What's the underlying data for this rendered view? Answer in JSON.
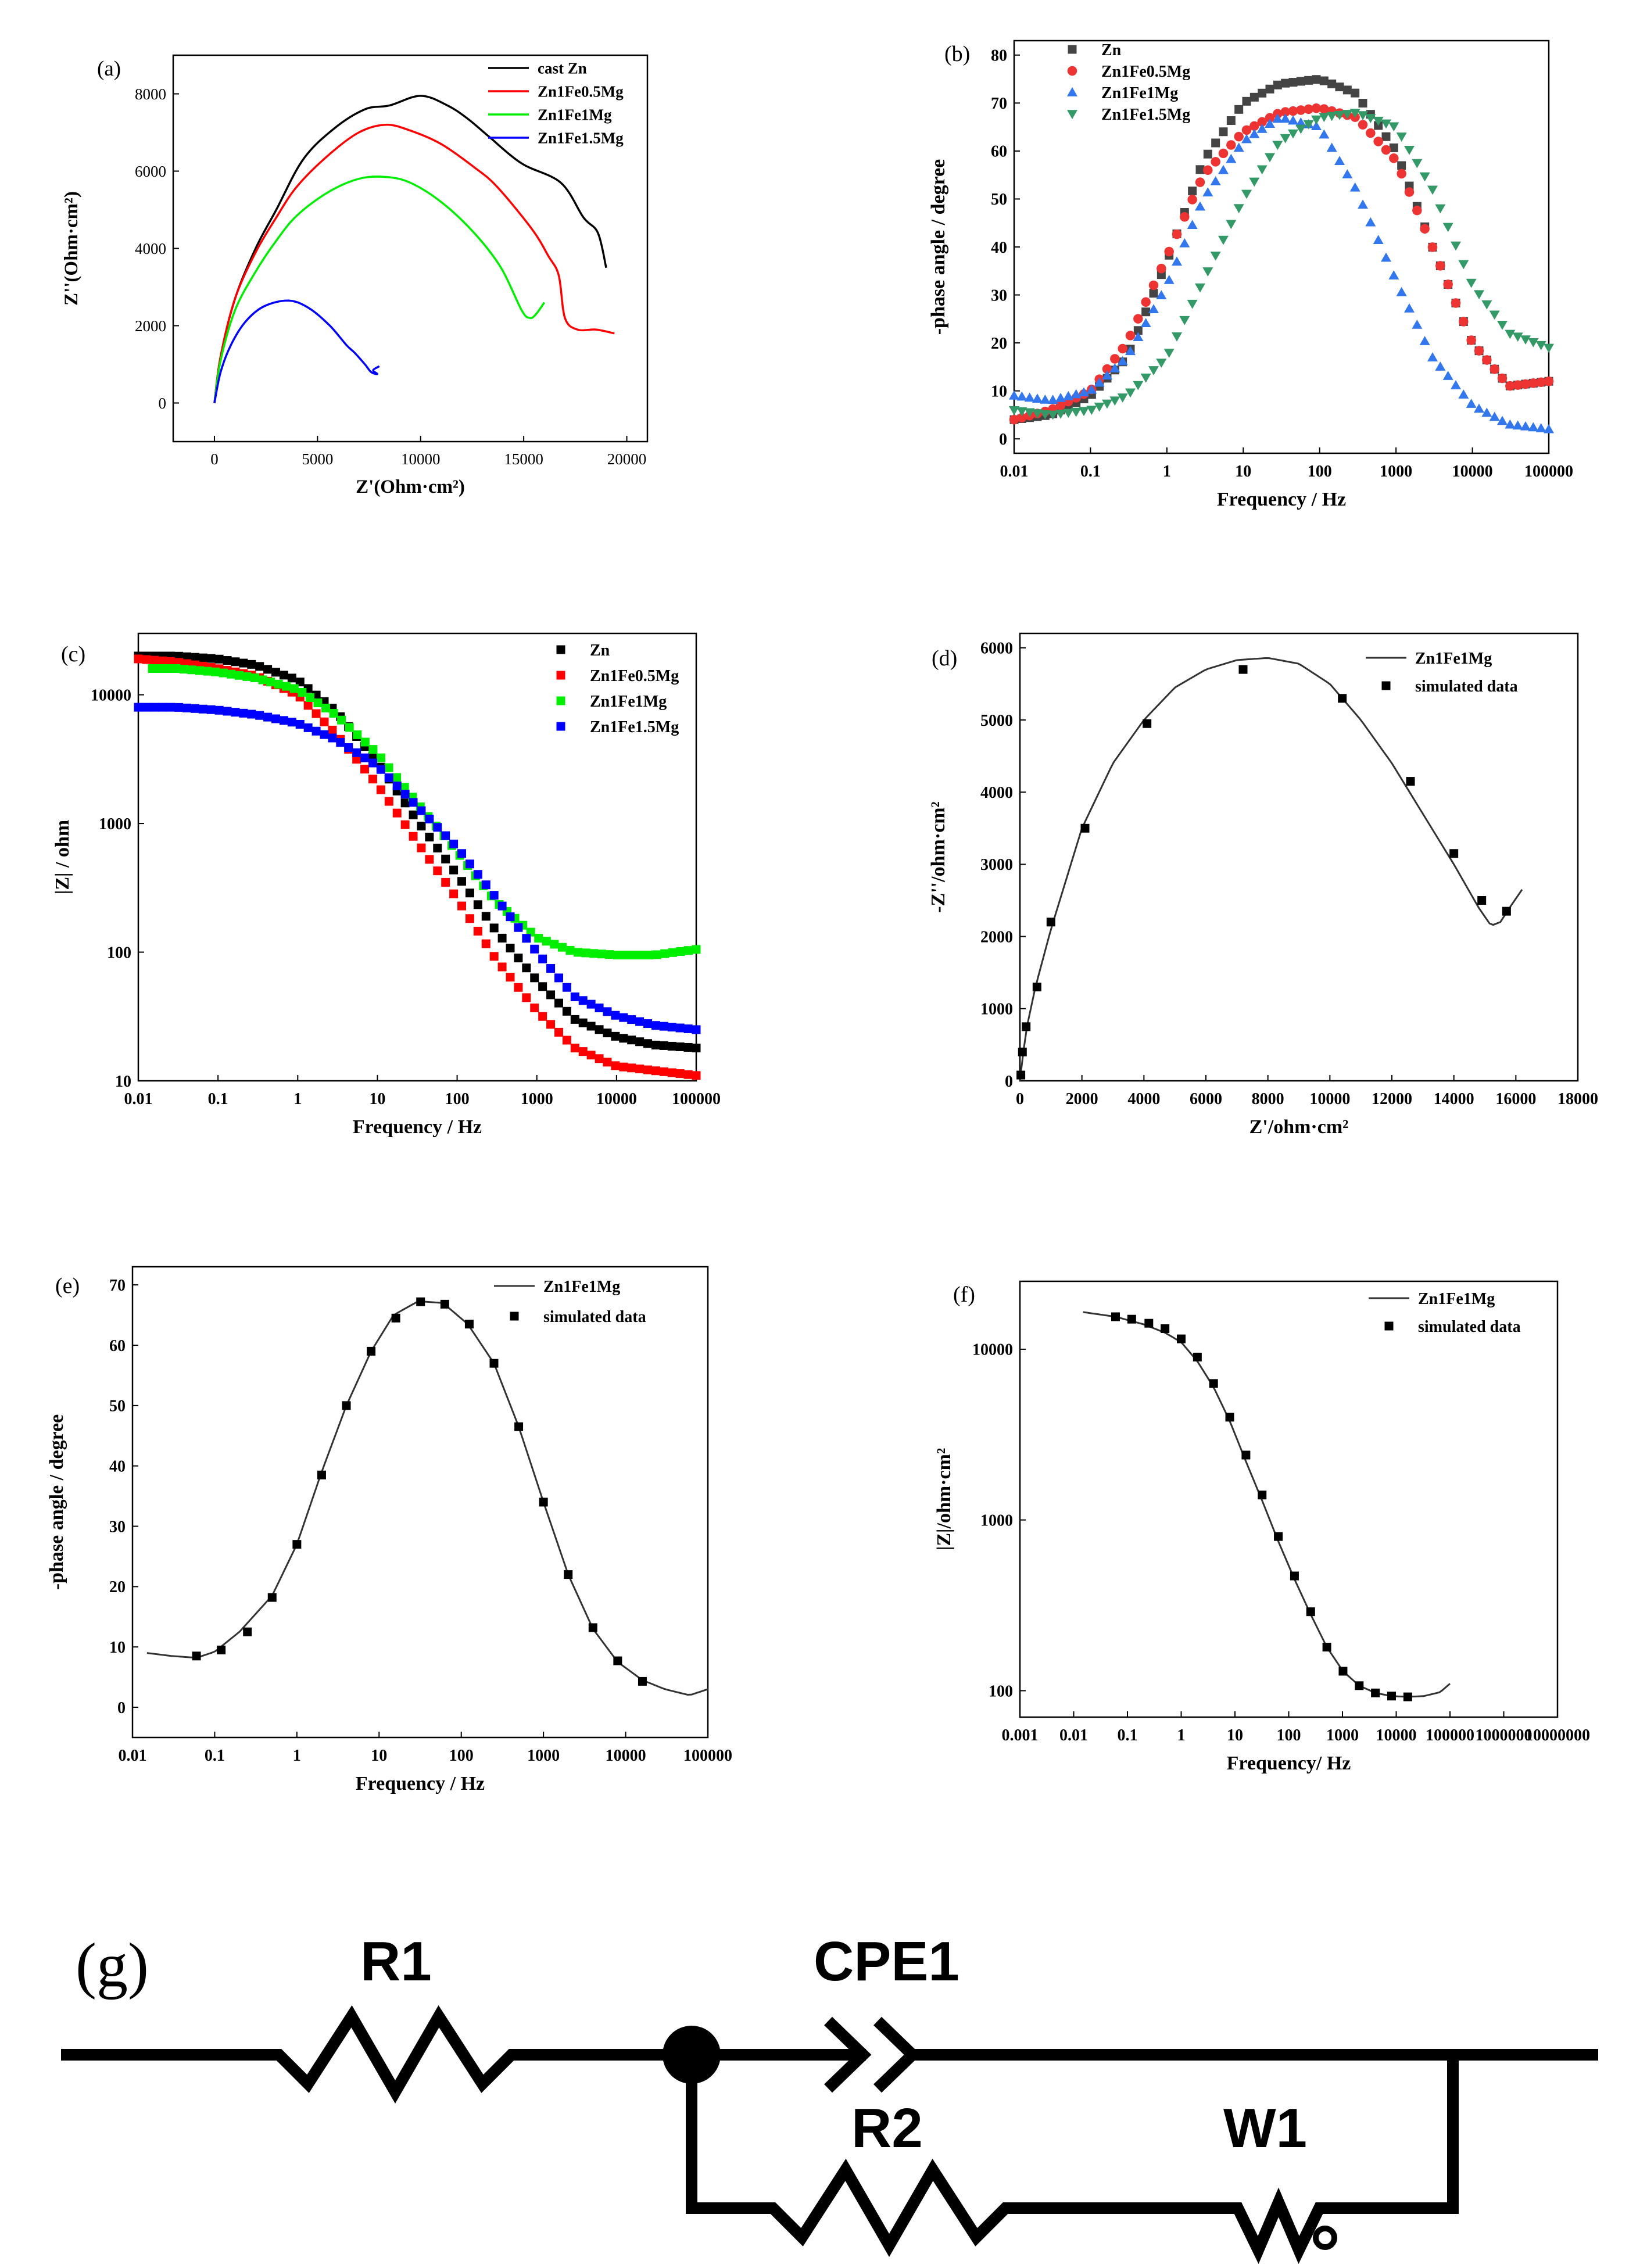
{
  "chart_data": [
    {
      "id": "a",
      "type": "line",
      "panel_label": "(a)",
      "xlabel": "Z'(Ohm·cm²)",
      "ylabel": "Z''(Ohm·cm²)",
      "xlim": [
        -2000,
        21000
      ],
      "ylim": [
        -1000,
        9000
      ],
      "xticks": [
        "0",
        "5000",
        "10000",
        "15000",
        "20000"
      ],
      "xtick_values": [
        0,
        5000,
        10000,
        15000,
        20000
      ],
      "yticks": [
        "0",
        "2000",
        "4000",
        "6000",
        "8000"
      ],
      "ytick_values": [
        0,
        2000,
        4000,
        6000,
        8000
      ],
      "legend_position": "top-right",
      "series": [
        {
          "name": "cast Zn",
          "color": "#000000",
          "x": [
            0,
            300,
            1000,
            2000,
            3000,
            4300,
            5800,
            7300,
            8500,
            10000,
            11300,
            12300,
            13300,
            14900,
            16800,
            17900,
            18600,
            19000
          ],
          "y": [
            0,
            1200,
            2700,
            4000,
            5000,
            6300,
            7100,
            7600,
            7700,
            7950,
            7700,
            7350,
            6900,
            6200,
            5700,
            4800,
            4400,
            3500
          ]
        },
        {
          "name": "Zn1Fe0.5Mg",
          "color": "#ff0000",
          "x": [
            0,
            300,
            1000,
            2000,
            3000,
            4000,
            5500,
            7000,
            8300,
            9500,
            11000,
            12600,
            13700,
            15400,
            16200,
            16700,
            17000,
            17600,
            18500,
            19400
          ],
          "y": [
            0,
            1200,
            2700,
            3900,
            4800,
            5600,
            6400,
            7000,
            7200,
            7050,
            6700,
            6100,
            5600,
            4500,
            3800,
            3300,
            2200,
            1900,
            1900,
            1800
          ]
        },
        {
          "name": "Zn1Fe1Mg",
          "color": "#00ee00",
          "x": [
            0,
            300,
            1000,
            2000,
            3000,
            4000,
            5500,
            7000,
            8300,
            9500,
            11000,
            12600,
            13900,
            14900,
            15300,
            15600,
            16000
          ],
          "y": [
            0,
            1100,
            2400,
            3400,
            4200,
            4850,
            5450,
            5800,
            5850,
            5700,
            5200,
            4400,
            3500,
            2400,
            2200,
            2300,
            2600
          ]
        },
        {
          "name": "Zn1Fe1.5Mg",
          "color": "#0000ff",
          "x": [
            0,
            300,
            800,
            1500,
            2400,
            3600,
            4600,
            5600,
            6400,
            6800,
            7300,
            7600,
            7900,
            7700,
            8000
          ],
          "y": [
            0,
            800,
            1500,
            2100,
            2500,
            2650,
            2450,
            2000,
            1500,
            1300,
            1000,
            800,
            750,
            850,
            950
          ]
        }
      ]
    },
    {
      "id": "b",
      "type": "scatter",
      "panel_label": "(b)",
      "xlabel": "Frequency / Hz",
      "ylabel": "-phase angle / degree",
      "xscale": "log",
      "xlim": [
        0.01,
        100000
      ],
      "ylim": [
        -3,
        83
      ],
      "xticks": [
        "0.01",
        "0.1",
        "1",
        "10",
        "100",
        "1000",
        "10000",
        "100000"
      ],
      "xtick_values": [
        0.01,
        0.1,
        1,
        10,
        100,
        1000,
        10000,
        100000
      ],
      "yticks": [
        "0",
        "10",
        "20",
        "30",
        "40",
        "50",
        "60",
        "70",
        "80"
      ],
      "ytick_values": [
        0,
        10,
        20,
        30,
        40,
        50,
        60,
        70,
        80
      ],
      "legend_position": "top-left",
      "series": [
        {
          "name": "Zn",
          "color": "#444444",
          "marker": "square",
          "x": [
            0.01,
            0.03,
            0.1,
            0.3,
            1,
            3,
            10,
            30,
            100,
            300,
            1000,
            3000,
            10000,
            30000,
            100000
          ],
          "y": [
            4,
            5,
            9,
            17,
            37,
            58,
            70,
            74,
            75,
            72,
            60,
            40,
            20,
            11,
            12
          ]
        },
        {
          "name": "Zn1Fe0.5Mg",
          "color": "#ee3333",
          "marker": "circle",
          "x": [
            0.01,
            0.03,
            0.1,
            0.3,
            1,
            3,
            10,
            30,
            100,
            300,
            1000,
            3000,
            10000,
            30000,
            100000
          ],
          "y": [
            4,
            6,
            10,
            20,
            38,
            55,
            64,
            68,
            69,
            67,
            58,
            40,
            20,
            11,
            12
          ]
        },
        {
          "name": "Zn1Fe1Mg",
          "color": "#3377ee",
          "marker": "triangle-up",
          "x": [
            0.01,
            0.03,
            0.1,
            0.3,
            1,
            3,
            10,
            30,
            100,
            300,
            1000,
            3000,
            10000,
            30000,
            100000
          ],
          "y": [
            9,
            8,
            10,
            17,
            32,
            50,
            62,
            67,
            65,
            52,
            33,
            17,
            7,
            3,
            2
          ]
        },
        {
          "name": "Zn1Fe1.5Mg",
          "color": "#339966",
          "marker": "triangle-down",
          "x": [
            0.01,
            0.03,
            0.1,
            0.3,
            1,
            3,
            10,
            30,
            100,
            300,
            1000,
            3000,
            10000,
            30000,
            100000
          ],
          "y": [
            6,
            5,
            6,
            9,
            17,
            33,
            50,
            62,
            67,
            68,
            65,
            52,
            32,
            22,
            19
          ]
        }
      ]
    },
    {
      "id": "c",
      "type": "scatter",
      "panel_label": "(c)",
      "xlabel": "Frequency / Hz",
      "ylabel": "|Z| / ohm",
      "xscale": "log",
      "yscale": "log",
      "xlim": [
        0.01,
        100000
      ],
      "ylim": [
        10,
        30000
      ],
      "xticks": [
        "0.01",
        "0.1",
        "1",
        "10",
        "100",
        "1000",
        "10000",
        "100000"
      ],
      "xtick_values": [
        0.01,
        0.1,
        1,
        10,
        100,
        1000,
        10000,
        100000
      ],
      "yticks": [
        "10",
        "100",
        "1000",
        "10000"
      ],
      "ytick_values": [
        10,
        100,
        1000,
        10000
      ],
      "legend_position": "top-right",
      "series": [
        {
          "name": "Zn",
          "color": "#000000",
          "marker": "square",
          "x": [
            0.01,
            0.03,
            0.1,
            0.3,
            1,
            3,
            10,
            30,
            100,
            300,
            1000,
            3000,
            10000,
            30000,
            100000
          ],
          "y": [
            20000,
            20000,
            19000,
            17000,
            13000,
            7500,
            3000,
            1100,
            400,
            150,
            60,
            30,
            22,
            19,
            18
          ]
        },
        {
          "name": "Zn1Fe0.5Mg",
          "color": "#ff0000",
          "marker": "square",
          "x": [
            0.01,
            0.03,
            0.1,
            0.3,
            1,
            3,
            10,
            30,
            100,
            300,
            1000,
            3000,
            10000,
            30000,
            100000
          ],
          "y": [
            19000,
            18000,
            16000,
            14000,
            10000,
            5000,
            2000,
            750,
            260,
            90,
            35,
            18,
            13,
            12,
            11
          ]
        },
        {
          "name": "Zn1Fe1Mg",
          "color": "#00ee00",
          "marker": "square",
          "x": [
            0.015,
            0.03,
            0.1,
            0.3,
            1,
            3,
            10,
            30,
            100,
            300,
            1000,
            3000,
            10000,
            30000,
            100000
          ],
          "y": [
            16000,
            16000,
            15000,
            13500,
            11000,
            7000,
            3500,
            1500,
            600,
            250,
            130,
            100,
            95,
            95,
            105
          ]
        },
        {
          "name": "Zn1Fe1.5Mg",
          "color": "#0000ff",
          "marker": "square",
          "x": [
            0.01,
            0.03,
            0.1,
            0.3,
            1,
            3,
            10,
            30,
            100,
            300,
            1000,
            3000,
            10000,
            30000,
            100000
          ],
          "y": [
            8000,
            8000,
            7600,
            7000,
            6000,
            4500,
            2800,
            1400,
            650,
            270,
            100,
            45,
            32,
            27,
            25
          ]
        }
      ]
    },
    {
      "id": "d",
      "type": "scatter",
      "panel_label": "(d)",
      "xlabel": "Z'/ohm·cm²",
      "ylabel": "-Z''/ohm·cm²",
      "xlim": [
        0,
        18000
      ],
      "ylim": [
        0,
        6200
      ],
      "xticks": [
        "0",
        "2000",
        "4000",
        "6000",
        "8000",
        "10000",
        "12000",
        "14000",
        "16000",
        "18000"
      ],
      "xtick_values": [
        0,
        2000,
        4000,
        6000,
        8000,
        10000,
        12000,
        14000,
        16000,
        18000
      ],
      "yticks": [
        "0",
        "1000",
        "2000",
        "3000",
        "4000",
        "5000",
        "6000"
      ],
      "ytick_values": [
        0,
        1000,
        2000,
        3000,
        4000,
        5000,
        6000
      ],
      "legend_position": "top-right",
      "series": [
        {
          "name": "Zn1Fe1Mg",
          "style": "line",
          "color": "#333333",
          "x": [
            0,
            80,
            200,
            500,
            1000,
            2000,
            3000,
            4000,
            5000,
            6000,
            7000,
            8000,
            9000,
            10000,
            11000,
            12000,
            13000,
            14000,
            14800,
            15200,
            15500,
            15800,
            16200
          ],
          "y": [
            0,
            300,
            700,
            1300,
            2100,
            3500,
            4400,
            5000,
            5450,
            5700,
            5830,
            5860,
            5780,
            5500,
            5000,
            4400,
            3700,
            3000,
            2400,
            2150,
            2200,
            2400,
            2650
          ]
        },
        {
          "name": "simulated data",
          "style": "marker",
          "color": "#000000",
          "marker": "square",
          "x": [
            30,
            80,
            200,
            550,
            1000,
            2100,
            4100,
            7200,
            10400,
            12600,
            14000,
            14900,
            15700
          ],
          "y": [
            80,
            400,
            750,
            1300,
            2200,
            3500,
            4950,
            5700,
            5300,
            4150,
            3150,
            2500,
            2350
          ]
        }
      ]
    },
    {
      "id": "e",
      "type": "scatter",
      "panel_label": "(e)",
      "xlabel": "Frequency / Hz",
      "ylabel": "-phase angle / degree",
      "xscale": "log",
      "xlim": [
        0.01,
        100000
      ],
      "ylim": [
        -5,
        73
      ],
      "xticks": [
        "0.01",
        "0.1",
        "1",
        "10",
        "100",
        "1000",
        "10000",
        "100000"
      ],
      "xtick_values": [
        0.01,
        0.1,
        1,
        10,
        100,
        1000,
        10000,
        100000
      ],
      "yticks": [
        "0",
        "10",
        "20",
        "30",
        "40",
        "50",
        "60",
        "70"
      ],
      "ytick_values": [
        0,
        10,
        20,
        30,
        40,
        50,
        60,
        70
      ],
      "legend_position": "top-right",
      "series": [
        {
          "name": "Zn1Fe1Mg",
          "style": "line",
          "color": "#333333",
          "x": [
            0.015,
            0.03,
            0.06,
            0.1,
            0.2,
            0.5,
            1,
            2,
            4,
            8,
            15,
            30,
            60,
            120,
            250,
            500,
            1000,
            2000,
            4000,
            8000,
            16000,
            30000,
            60000,
            100000
          ],
          "y": [
            9,
            8.5,
            8.2,
            9.2,
            12.5,
            18.5,
            27,
            39,
            50,
            59,
            65,
            67.3,
            67,
            63.5,
            57,
            46.5,
            34,
            22,
            13,
            7.5,
            4.5,
            3,
            2,
            3
          ]
        },
        {
          "name": "simulated data",
          "style": "marker",
          "color": "#000000",
          "marker": "square",
          "x": [
            0.06,
            0.12,
            0.25,
            0.5,
            1,
            2,
            4,
            8,
            16,
            32,
            63,
            125,
            250,
            500,
            1000,
            2000,
            4000,
            8000,
            16000
          ],
          "y": [
            8.5,
            9.5,
            12.5,
            18.2,
            27,
            38.5,
            50,
            59,
            64.5,
            67.2,
            66.8,
            63.5,
            57,
            46.5,
            34,
            22,
            13.2,
            7.7,
            4.3
          ]
        }
      ]
    },
    {
      "id": "f",
      "type": "scatter",
      "panel_label": "(f)",
      "xlabel": "Frequency/ Hz",
      "ylabel": "|Z|/ohm·cm²",
      "xscale": "log",
      "yscale": "log",
      "xlim": [
        0.001,
        10000000
      ],
      "ylim": [
        70,
        25000
      ],
      "xticks": [
        "0.001",
        "0.01",
        "0.1",
        "1",
        "10",
        "100",
        "1000",
        "10000",
        "100000",
        "1000000",
        "10000000"
      ],
      "xtick_values": [
        0.001,
        0.01,
        0.1,
        1,
        10,
        100,
        1000,
        10000,
        100000,
        1000000,
        10000000
      ],
      "yticks": [
        "100",
        "1000",
        "10000"
      ],
      "ytick_values": [
        100,
        1000,
        10000
      ],
      "legend_position": "top-right",
      "series": [
        {
          "name": "Zn1Fe1Mg",
          "style": "line",
          "color": "#333333",
          "x": [
            0.015,
            0.06,
            0.2,
            0.5,
            1,
            2,
            4,
            8,
            16,
            32,
            64,
            128,
            256,
            512,
            1024,
            2048,
            4096,
            8192,
            16384,
            32768,
            65536,
            100000
          ],
          "y": [
            16500,
            15500,
            14000,
            12500,
            11000,
            8500,
            6000,
            3800,
            2200,
            1300,
            750,
            450,
            280,
            180,
            130,
            107,
            97,
            93,
            92,
            93,
            98,
            110
          ]
        },
        {
          "name": "simulated data",
          "style": "marker",
          "color": "#000000",
          "marker": "square",
          "x": [
            0.06,
            0.12,
            0.25,
            0.5,
            1,
            2,
            4,
            8,
            16,
            32,
            64,
            128,
            256,
            512,
            1024,
            2048,
            4096,
            8192,
            16384
          ],
          "y": [
            15500,
            15000,
            14200,
            13200,
            11500,
            9000,
            6300,
            4000,
            2400,
            1400,
            800,
            470,
            290,
            180,
            130,
            107,
            97,
            93,
            92
          ]
        }
      ]
    }
  ],
  "circuit": {
    "label": "(g)",
    "r1": "R1",
    "cpe1": "CPE1",
    "r2": "R2",
    "w1": "W1"
  }
}
